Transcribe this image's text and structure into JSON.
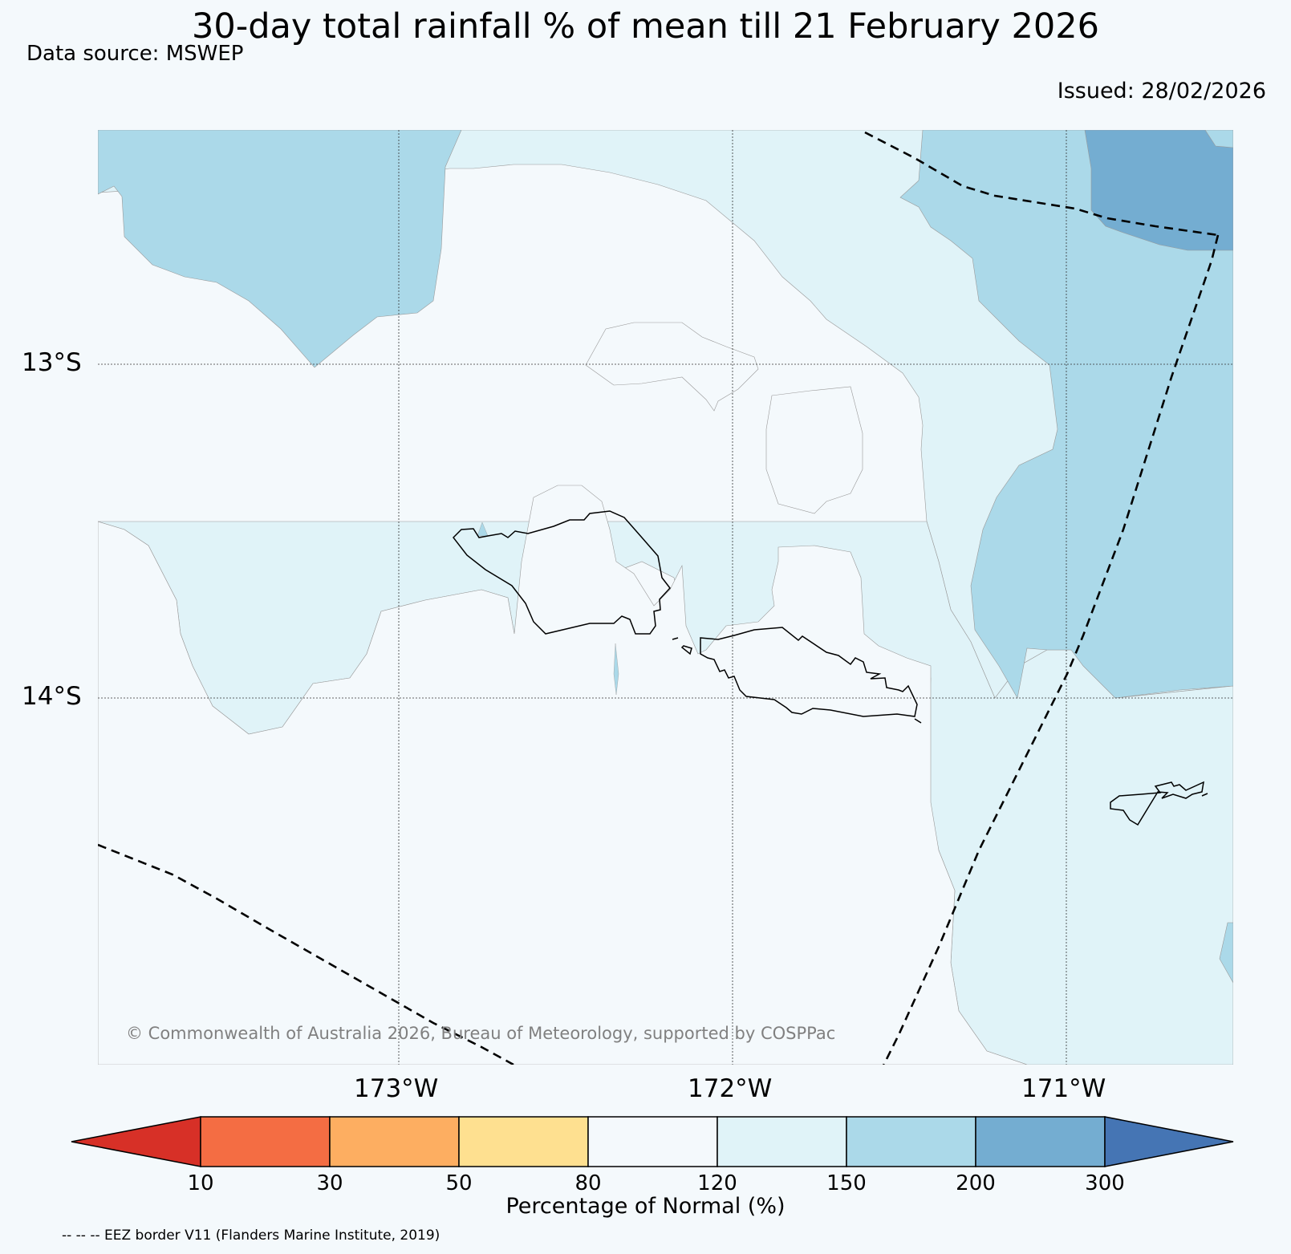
{
  "header": {
    "title": "30-day total rainfall % of mean till 21 February 2026",
    "source": "Data source: MSWEP",
    "issued": "Issued: 28/02/2026"
  },
  "map": {
    "lat_labels": [
      "13°S",
      "14°S"
    ],
    "lon_labels": [
      "173°W",
      "172°W",
      "171°W"
    ],
    "copyright": "© Commonwealth of Australia 2026, Bureau of Meteorology, supported by COSPPac"
  },
  "legend": {
    "bins": [
      {
        "color": "#d73027",
        "range": "<10"
      },
      {
        "color": "#f46d43",
        "range": "10-30"
      },
      {
        "color": "#fdae61",
        "range": "30-50"
      },
      {
        "color": "#fee090",
        "range": "50-80"
      },
      {
        "color": "#f4f9fc",
        "range": "80-120"
      },
      {
        "color": "#e0f3f8",
        "range": "120-150"
      },
      {
        "color": "#abd9e9",
        "range": "150-200"
      },
      {
        "color": "#74add1",
        "range": "200-300"
      },
      {
        "color": "#4575b4",
        "range": ">300"
      }
    ],
    "ticks": [
      "10",
      "30",
      "50",
      "80",
      "120",
      "150",
      "200",
      "300"
    ],
    "label": "Percentage of Normal (%)"
  },
  "footnote": "-- -- -- EEZ border V11 (Flanders Marine Institute, 2019)"
}
